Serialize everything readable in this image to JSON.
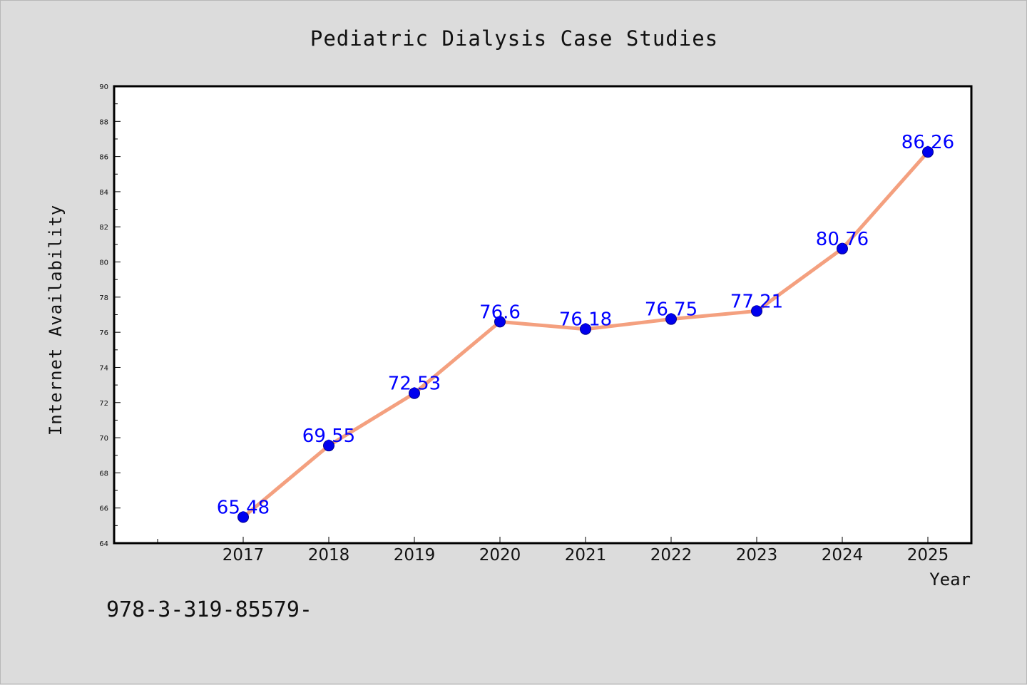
{
  "chart_data": {
    "type": "line",
    "title": "Pediatric Dialysis Case Studies",
    "xlabel": "Year",
    "ylabel": "Internet Availability",
    "x": [
      "2017",
      "2018",
      "2019",
      "2020",
      "2021",
      "2022",
      "2023",
      "2024",
      "2025"
    ],
    "series": [
      {
        "values": [
          65.48,
          69.55,
          72.53,
          76.6,
          76.18,
          76.75,
          77.21,
          80.76,
          86.26
        ],
        "data_labels": [
          "65.48",
          "69.55",
          "72.53",
          "76.6",
          "76.18",
          "76.75",
          "77.21",
          "80.76",
          "86.26"
        ],
        "line_color": "#f4a07f",
        "marker_color": "#0000ee"
      }
    ],
    "ylim": [
      64,
      90
    ],
    "yticks": [
      64,
      66,
      68,
      70,
      72,
      74,
      76,
      78,
      80,
      82,
      84,
      86,
      88,
      90
    ],
    "ytick_labels": [
      "64",
      "66",
      "68",
      "70",
      "72",
      "74",
      "76",
      "78",
      "80",
      "82",
      "84",
      "86",
      "88",
      "90"
    ],
    "grid": false,
    "legend": "none"
  },
  "footnote": "978-3-319-85579-",
  "colors": {
    "background": "#dcdcdc",
    "plot_area": "#ffffff",
    "data_label": "#0000ff"
  }
}
